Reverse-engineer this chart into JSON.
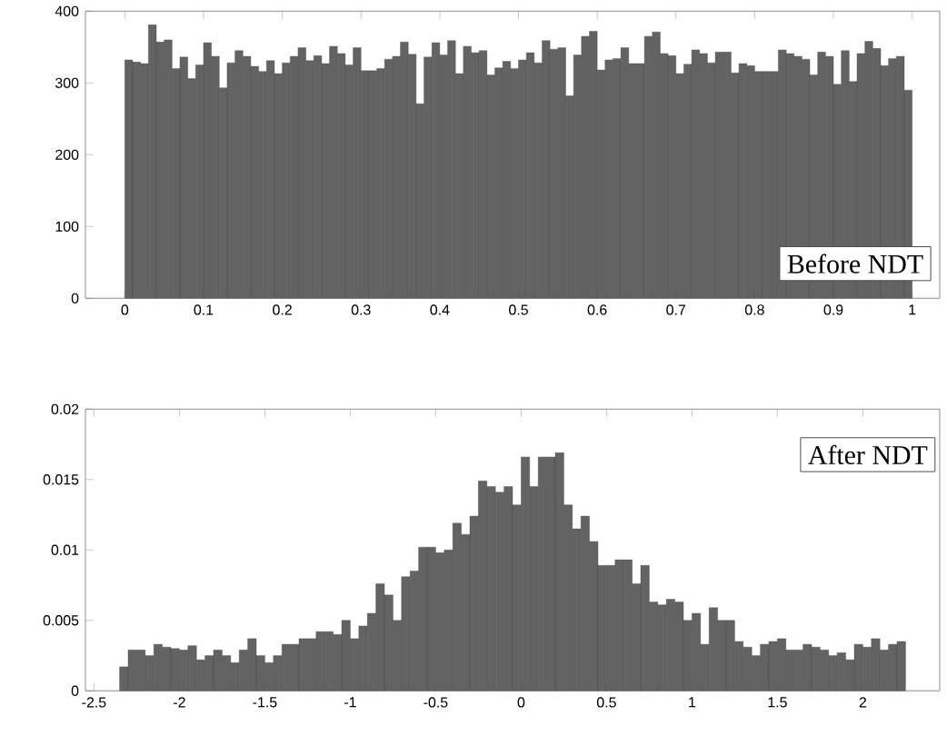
{
  "chart_data": [
    {
      "type": "histogram",
      "color": "#636363",
      "bins": [
        0,
        0.01,
        0.02,
        0.03,
        0.04,
        0.05,
        0.06,
        0.07,
        0.08,
        0.09,
        0.1,
        0.11,
        0.12,
        0.13,
        0.14,
        0.15,
        0.16,
        0.17,
        0.18,
        0.19,
        0.2,
        0.21,
        0.22,
        0.23,
        0.24,
        0.25,
        0.26,
        0.27,
        0.28,
        0.29,
        0.3,
        0.31,
        0.32,
        0.33,
        0.34,
        0.35,
        0.36,
        0.37,
        0.38,
        0.39,
        0.4,
        0.41,
        0.42,
        0.43,
        0.44,
        0.45,
        0.46,
        0.47,
        0.48,
        0.49,
        0.5,
        0.51,
        0.52,
        0.53,
        0.54,
        0.55,
        0.56,
        0.57,
        0.58,
        0.59,
        0.6,
        0.61,
        0.62,
        0.63,
        0.64,
        0.65,
        0.66,
        0.67,
        0.68,
        0.69,
        0.7,
        0.71,
        0.72,
        0.73,
        0.74,
        0.75,
        0.76,
        0.77,
        0.78,
        0.79,
        0.8,
        0.81,
        0.82,
        0.83,
        0.84,
        0.85,
        0.86,
        0.87,
        0.88,
        0.89,
        0.9,
        0.91,
        0.92,
        0.93,
        0.94,
        0.95,
        0.96,
        0.97,
        0.98,
        0.99,
        1
      ],
      "values": [
        332,
        329,
        327,
        381,
        357,
        360,
        320,
        336,
        306,
        325,
        356,
        337,
        293,
        328,
        345,
        337,
        323,
        316,
        331,
        313,
        328,
        337,
        349,
        331,
        338,
        327,
        351,
        341,
        325,
        349,
        317,
        317,
        320,
        333,
        337,
        357,
        340,
        271,
        336,
        356,
        339,
        359,
        313,
        351,
        342,
        345,
        311,
        321,
        330,
        320,
        332,
        342,
        328,
        359,
        347,
        349,
        282,
        339,
        365,
        372,
        318,
        332,
        334,
        349,
        327,
        327,
        365,
        371,
        341,
        338,
        313,
        326,
        346,
        341,
        328,
        343,
        343,
        314,
        327,
        324,
        316,
        316,
        316,
        346,
        341,
        337,
        333,
        311,
        343,
        337,
        298,
        345,
        302,
        341,
        358,
        348,
        324,
        334,
        337,
        290
      ],
      "xlim": [
        -0.05,
        1.035
      ],
      "ylim": [
        0,
        400
      ],
      "xticks": [
        0,
        0.1,
        0.2,
        0.3,
        0.4,
        0.5,
        0.6,
        0.7,
        0.8,
        0.9,
        1
      ],
      "yticks": [
        0,
        100,
        200,
        300,
        400
      ],
      "annotations": [
        "Before NDT"
      ]
    },
    {
      "type": "histogram",
      "color": "#636363",
      "bins": [
        -2.35,
        -2.3,
        -2.25,
        -2.2,
        -2.15,
        -2.1,
        -2.05,
        -2,
        -1.95,
        -1.9,
        -1.85,
        -1.8,
        -1.75,
        -1.7,
        -1.65,
        -1.6,
        -1.55,
        -1.5,
        -1.45,
        -1.4,
        -1.35,
        -1.3,
        -1.25,
        -1.2,
        -1.15,
        -1.1,
        -1.05,
        -1,
        -0.95,
        -0.9,
        -0.85,
        -0.8,
        -0.75,
        -0.7,
        -0.65,
        -0.6,
        -0.55,
        -0.5,
        -0.45,
        -0.4,
        -0.35,
        -0.3,
        -0.25,
        -0.2,
        -0.15,
        -0.1,
        -0.05,
        0,
        0.05,
        0.1,
        0.15,
        0.2,
        0.25,
        0.3,
        0.35,
        0.4,
        0.45,
        0.5,
        0.55,
        0.6,
        0.65,
        0.7,
        0.75,
        0.8,
        0.85,
        0.9,
        0.95,
        1,
        1.05,
        1.1,
        1.15,
        1.2,
        1.25,
        1.3,
        1.35,
        1.4,
        1.45,
        1.5,
        1.55,
        1.6,
        1.65,
        1.7,
        1.75,
        1.8,
        1.85,
        1.9,
        1.95,
        2,
        2.05,
        2.1,
        2.15,
        2.2,
        2.25
      ],
      "values": [
        0.0017,
        0.0029,
        0.0029,
        0.0025,
        0.0033,
        0.0031,
        0.003,
        0.0029,
        0.0032,
        0.0022,
        0.0025,
        0.0029,
        0.0025,
        0.002,
        0.0029,
        0.0037,
        0.0025,
        0.002,
        0.0025,
        0.0033,
        0.0033,
        0.0037,
        0.0037,
        0.0042,
        0.0042,
        0.004,
        0.005,
        0.0037,
        0.0046,
        0.0055,
        0.0076,
        0.0068,
        0.005,
        0.0081,
        0.0085,
        0.0102,
        0.0102,
        0.0098,
        0.01,
        0.0119,
        0.0111,
        0.0124,
        0.0149,
        0.0145,
        0.0141,
        0.0145,
        0.0132,
        0.0166,
        0.0145,
        0.0166,
        0.0166,
        0.0169,
        0.0132,
        0.0115,
        0.0124,
        0.0106,
        0.0089,
        0.0089,
        0.0093,
        0.0093,
        0.0076,
        0.0089,
        0.0063,
        0.0061,
        0.0065,
        0.0063,
        0.005,
        0.0055,
        0.0033,
        0.0059,
        0.005,
        0.005,
        0.0035,
        0.0031,
        0.0025,
        0.0033,
        0.0035,
        0.0037,
        0.0029,
        0.0029,
        0.0033,
        0.0031,
        0.0029,
        0.0025,
        0.0027,
        0.0022,
        0.0033,
        0.0031,
        0.0037,
        0.0029,
        0.0033,
        0.0035
      ],
      "xlim": [
        -2.55,
        2.45
      ],
      "ylim": [
        0,
        0.02
      ],
      "xticks": [
        -2.5,
        -2,
        -1.5,
        -1,
        -0.5,
        0,
        0.5,
        1,
        1.5,
        2
      ],
      "yticks": [
        0,
        0.005,
        0.01,
        0.015,
        0.02
      ],
      "annotations": [
        "After NDT"
      ]
    }
  ]
}
